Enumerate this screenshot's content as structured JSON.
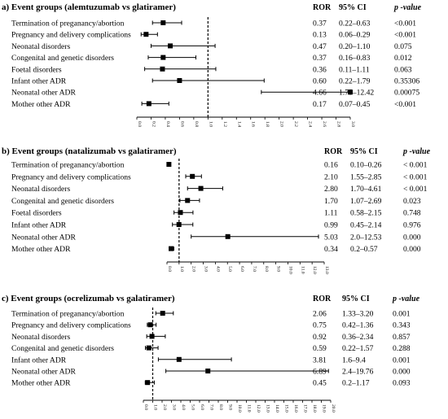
{
  "chart_data": [
    {
      "type": "forest",
      "title": "a) Event groups (alemtuzumab vs glatiramer)",
      "headers": {
        "ror": "ROR",
        "ci": "95% CI",
        "p": "p -value"
      },
      "xlim": [
        0,
        3.0
      ],
      "ticks": [
        "0.0",
        "0.2",
        "0.4",
        "0.6",
        "0.8",
        "1.0",
        "1.2",
        "1.4",
        "1.6",
        "1.8",
        "2.0",
        "2.2",
        "2.4",
        "2.6",
        "2.8",
        "3.0"
      ],
      "reference_line": 1.0,
      "rows": [
        {
          "label": "Termination of preganancy/abortion",
          "ror": 0.37,
          "lo": 0.22,
          "hi": 0.63,
          "ror_text": "0.37",
          "ci_text": "0.22–0.63",
          "p_text": "<0.001"
        },
        {
          "label": "Pregnancy and delivery complications",
          "ror": 0.13,
          "lo": 0.06,
          "hi": 0.29,
          "ror_text": "0.13",
          "ci_text": "0.06–0.29",
          "p_text": "<0.001"
        },
        {
          "label": "Neonatal disorders",
          "ror": 0.47,
          "lo": 0.2,
          "hi": 1.1,
          "ror_text": "0.47",
          "ci_text": "0.20–1.10",
          "p_text": "0.075"
        },
        {
          "label": "Congenital and genetic disorders",
          "ror": 0.37,
          "lo": 0.16,
          "hi": 0.83,
          "ror_text": "0.37",
          "ci_text": "0.16–0.83",
          "p_text": "0.012"
        },
        {
          "label": "Foetal disorders",
          "ror": 0.36,
          "lo": 0.11,
          "hi": 1.11,
          "ror_text": "0.36",
          "ci_text": "0.11–1.11",
          "p_text": "0.063"
        },
        {
          "label": "Infant other ADR",
          "ror": 0.6,
          "lo": 0.22,
          "hi": 1.79,
          "ror_text": "0.60",
          "ci_text": "0.22–1.79",
          "p_text": "0.35306"
        },
        {
          "label": "Neonatal other ADR",
          "ror": 4.66,
          "lo": 1.75,
          "hi": 12.42,
          "ror_text": "4.66",
          "ci_text": "1.75–12.42",
          "p_text": "0.00075"
        },
        {
          "label": "Mother other ADR",
          "ror": 0.17,
          "lo": 0.07,
          "hi": 0.45,
          "ror_text": "0.17",
          "ci_text": "0.07–0.45",
          "p_text": "<0.001"
        }
      ]
    },
    {
      "type": "forest",
      "title": "b) Event groups (natalizumab vs galatiramer)",
      "headers": {
        "ror": "ROR",
        "ci": "95% CI",
        "p": "p -value"
      },
      "xlim": [
        0,
        13.0
      ],
      "ticks": [
        "0.0",
        "1.0",
        "2.0",
        "3.0",
        "4.0",
        "5.0",
        "6.0",
        "7.0",
        "8.0",
        "9.0",
        "10.0",
        "11.0",
        "12.0",
        "13.0"
      ],
      "reference_line": 1.0,
      "rows": [
        {
          "label": "Termination of preganancy/abortion",
          "ror": 0.16,
          "lo": 0.1,
          "hi": 0.26,
          "ror_text": "0.16",
          "ci_text": "0.10–0.26",
          "p_text": "< 0.001"
        },
        {
          "label": "Pregnancy and delivery complications",
          "ror": 2.1,
          "lo": 1.55,
          "hi": 2.85,
          "ror_text": "2.10",
          "ci_text": "1.55–2.85",
          "p_text": "< 0.001"
        },
        {
          "label": "Neonatal disorders",
          "ror": 2.8,
          "lo": 1.7,
          "hi": 4.61,
          "ror_text": "2.80",
          "ci_text": "1.70–4.61",
          "p_text": "< 0.001"
        },
        {
          "label": "Congenital and genetic disorders",
          "ror": 1.7,
          "lo": 1.07,
          "hi": 2.69,
          "ror_text": "1.70",
          "ci_text": "1.07–2.69",
          "p_text": "0.023"
        },
        {
          "label": "Foetal disorders",
          "ror": 1.11,
          "lo": 0.58,
          "hi": 2.15,
          "ror_text": "1.11",
          "ci_text": "0.58–2.15",
          "p_text": "0.748"
        },
        {
          "label": "Infant other ADR",
          "ror": 0.99,
          "lo": 0.45,
          "hi": 2.14,
          "ror_text": "0.99",
          "ci_text": "0.45–2.14",
          "p_text": "0.976"
        },
        {
          "label": "Neonatal other ADR",
          "ror": 5.03,
          "lo": 2.0,
          "hi": 12.53,
          "ror_text": "5.03",
          "ci_text": "2.0–12.53",
          "p_text": "0.000"
        },
        {
          "label": "Mother other ADR",
          "ror": 0.34,
          "lo": 0.2,
          "hi": 0.57,
          "ror_text": "0.34",
          "ci_text": "0.2–0.57",
          "p_text": "0.000"
        }
      ]
    },
    {
      "type": "forest",
      "title": "c) Event groups (ocrelizumab vs galatiramer)",
      "headers": {
        "ror": "ROR",
        "ci": "95% CI",
        "p": "p -value"
      },
      "xlim": [
        0,
        20.0
      ],
      "ticks": [
        "0.0",
        "1.0",
        "2.0",
        "3.0",
        "4.0",
        "5.0",
        "6.0",
        "7.0",
        "8.0",
        "9.0",
        "10.0",
        "11.0",
        "12.0",
        "13.0",
        "14.0",
        "15.0",
        "16.0",
        "17.0",
        "18.0",
        "19.0",
        "20.0"
      ],
      "reference_line": 1.0,
      "rows": [
        {
          "label": "Termination of preganancy/abortion",
          "ror": 2.06,
          "lo": 1.33,
          "hi": 3.2,
          "ror_text": "2.06",
          "ci_text": "1.33–3.20",
          "p_text": "0.001"
        },
        {
          "label": "Pregnancy and delivery complications",
          "ror": 0.75,
          "lo": 0.42,
          "hi": 1.36,
          "ror_text": "0.75",
          "ci_text": "0.42–1.36",
          "p_text": "0.343"
        },
        {
          "label": "Neonatal disorders",
          "ror": 0.92,
          "lo": 0.36,
          "hi": 2.34,
          "ror_text": "0.92",
          "ci_text": "0.36–2.34",
          "p_text": "0.857"
        },
        {
          "label": "Congenital and genetic disorders",
          "ror": 0.59,
          "lo": 0.22,
          "hi": 1.57,
          "ror_text": "0.59",
          "ci_text": "0.22–1.57",
          "p_text": "0.288"
        },
        {
          "label": "Infant other ADR",
          "ror": 3.81,
          "lo": 1.6,
          "hi": 9.4,
          "ror_text": "3.81",
          "ci_text": "1.6–9.4",
          "p_text": "0.001"
        },
        {
          "label": "Neonatal other ADR",
          "ror": 6.89,
          "lo": 2.4,
          "hi": 19.76,
          "ror_text": "6.89",
          "ci_text": "2.4–19.76",
          "p_text": "0.000"
        },
        {
          "label": "Mother other ADR",
          "ror": 0.45,
          "lo": 0.2,
          "hi": 1.17,
          "ror_text": "0.45",
          "ci_text": "0.2–1.17",
          "p_text": "0.093"
        }
      ]
    }
  ]
}
